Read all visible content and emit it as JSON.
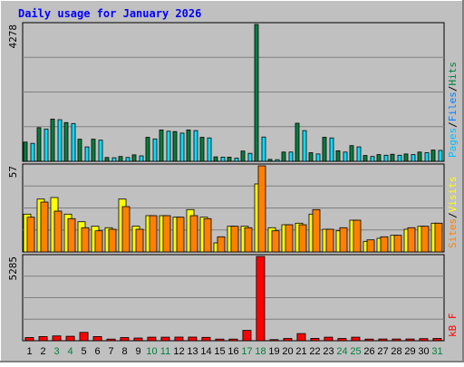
{
  "chart_data": {
    "type": "bar",
    "title": "Daily usage for January 2026",
    "days": [
      "1",
      "2",
      "3",
      "4",
      "5",
      "6",
      "7",
      "8",
      "9",
      "10",
      "11",
      "12",
      "13",
      "14",
      "15",
      "16",
      "17",
      "18",
      "19",
      "20",
      "21",
      "22",
      "23",
      "24",
      "25",
      "26",
      "27",
      "28",
      "29",
      "30",
      "31"
    ],
    "weekend_days": [
      "3",
      "4",
      "10",
      "11",
      "17",
      "18",
      "24",
      "25",
      "31"
    ],
    "panels": [
      {
        "id": "hits",
        "ymax": 4278,
        "ymax_label": "4278",
        "series": [
          {
            "name": "Hits",
            "color": "#008040",
            "values": [
              600,
              1050,
              1320,
              1210,
              690,
              690,
              120,
              150,
              200,
              750,
              980,
              930,
              980,
              750,
              140,
              130,
              320,
              4278,
              60,
              290,
              1190,
              270,
              750,
              330,
              490,
              180,
              210,
              220,
              230,
              290,
              350
            ]
          },
          {
            "name": "Files",
            "color": "#0080ff",
            "values": [
              0,
              0,
              0,
              0,
              0,
              0,
              0,
              0,
              0,
              0,
              0,
              0,
              0,
              0,
              0,
              0,
              0,
              0,
              0,
              0,
              0,
              0,
              0,
              0,
              0,
              0,
              0,
              0,
              0,
              0,
              0
            ]
          },
          {
            "name": "Pages",
            "color": "#00e0ff",
            "values": [
              560,
              1010,
              1300,
              1180,
              450,
              660,
              110,
              120,
              170,
              700,
              940,
              880,
              960,
              730,
              130,
              100,
              250,
              760,
              50,
              290,
              960,
              230,
              730,
              290,
              450,
              150,
              190,
              190,
              210,
              270,
              340
            ]
          }
        ],
        "legend": [
          {
            "text": "Pages",
            "color": "#00c0ff"
          },
          {
            "text": "/",
            "color": "#000000"
          },
          {
            "text": "Files",
            "color": "#0080ff"
          },
          {
            "text": "/",
            "color": "#000000"
          },
          {
            "text": "Hits",
            "color": "#008040"
          }
        ]
      },
      {
        "id": "visits",
        "ymax": 57,
        "ymax_label": "57",
        "series": [
          {
            "name": "Visits",
            "color": "#ffff00",
            "values": [
              25,
              35,
              36,
              25,
              20,
              17,
              16,
              35,
              17,
              24,
              24,
              23,
              28,
              23,
              6,
              17,
              17,
              45,
              16,
              18,
              19,
              25,
              15,
              14,
              21,
              7,
              9,
              11,
              15,
              17,
              19
            ]
          },
          {
            "name": "Sites",
            "color": "#ff8000",
            "values": [
              23,
              33,
              27,
              22,
              16,
              14,
              15,
              30,
              15,
              24,
              24,
              23,
              24,
              22,
              10,
              17,
              16,
              57,
              14,
              18,
              18,
              28,
              15,
              16,
              21,
              8,
              10,
              11,
              16,
              17,
              19
            ]
          }
        ],
        "legend": [
          {
            "text": "Sites",
            "color": "#ff8000"
          },
          {
            "text": "/",
            "color": "#000000"
          },
          {
            "text": "Visits",
            "color": "#ffff00"
          }
        ]
      },
      {
        "id": "kbytes",
        "ymax": 5285,
        "ymax_label": "5285",
        "series": [
          {
            "name": "KB F",
            "color": "#ff0000",
            "values": [
              200,
              260,
              300,
              280,
              520,
              260,
              100,
              200,
              170,
              220,
              220,
              230,
              230,
              210,
              100,
              100,
              650,
              5285,
              70,
              140,
              450,
              150,
              220,
              140,
              220,
              100,
              110,
              110,
              110,
              130,
              140
            ]
          }
        ],
        "legend": [
          {
            "text": "kB F",
            "color": "#ff0000"
          }
        ]
      }
    ],
    "colors": {
      "background": "#c0c0c0",
      "gridline": "#808080",
      "title": "#0000ff",
      "weekend_label": "#008040",
      "weekday_label": "#000000"
    }
  }
}
